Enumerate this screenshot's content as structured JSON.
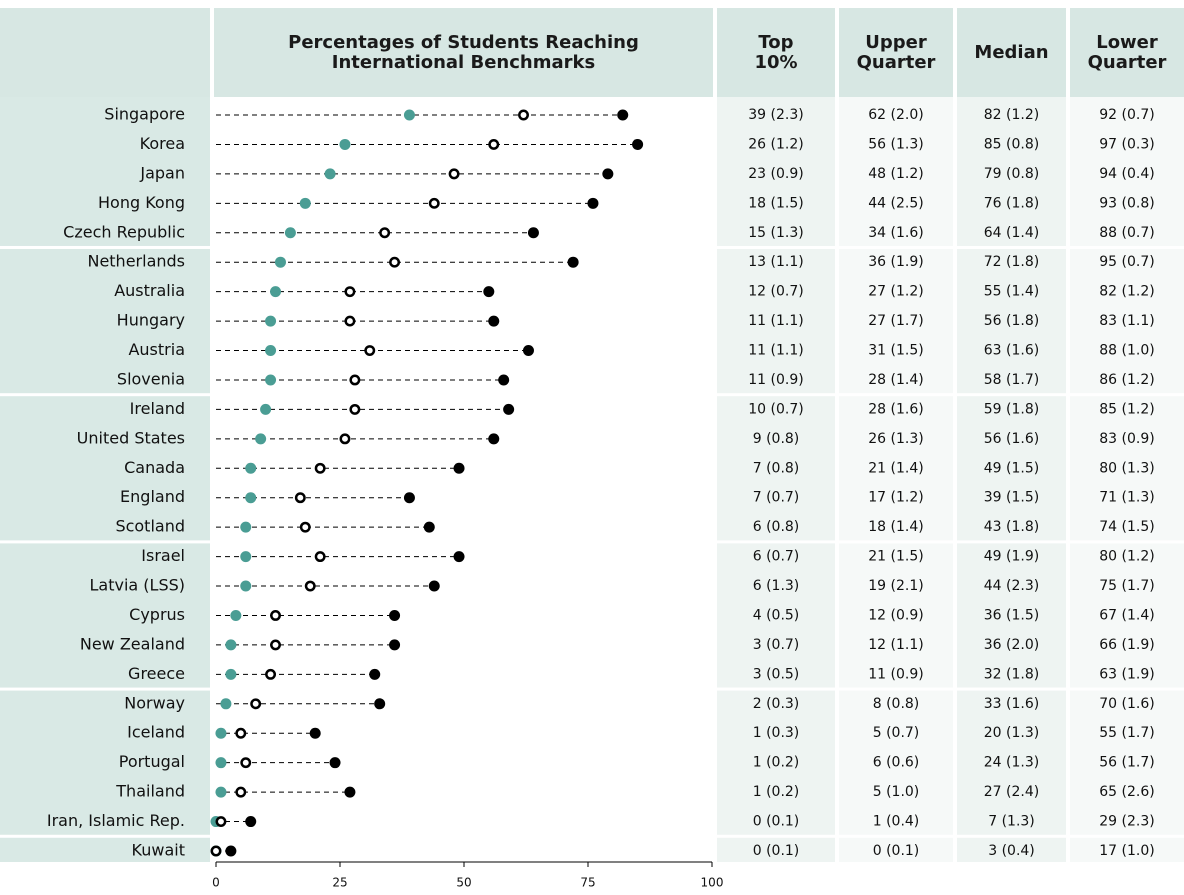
{
  "chart_data": {
    "type": "dot",
    "title": "Percentages of Students Reaching International Benchmarks",
    "categories": [
      "Singapore",
      "Korea",
      "Japan",
      "Hong Kong",
      "Czech Republic",
      "Netherlands",
      "Australia",
      "Hungary",
      "Austria",
      "Slovenia",
      "Ireland",
      "United States",
      "Canada",
      "England",
      "Scotland",
      "Israel",
      "Latvia (LSS)",
      "Cyprus",
      "New Zealand",
      "Greece",
      "Norway",
      "Iceland",
      "Portugal",
      "Thailand",
      "Iran, Islamic Rep.",
      "Kuwait"
    ],
    "xlim": [
      0,
      100
    ],
    "xticks": [
      0,
      25,
      50,
      75,
      100
    ],
    "series": [
      {
        "name": "Top 10%",
        "color": "#4a9d94",
        "marker": "filled",
        "values": [
          39,
          26,
          23,
          18,
          15,
          13,
          12,
          11,
          11,
          11,
          10,
          9,
          7,
          7,
          6,
          6,
          6,
          4,
          3,
          3,
          2,
          1,
          1,
          1,
          0,
          0
        ],
        "value_labels": [
          "39 (2.3)",
          "26 (1.2)",
          "23 (0.9)",
          "18 (1.5)",
          "15 (1.3)",
          "13 (1.1)",
          "12 (0.7)",
          "11 (1.1)",
          "11 (1.1)",
          "11 (0.9)",
          "10 (0.7)",
          "9 (0.8)",
          "7 (0.8)",
          "7 (0.7)",
          "6 (0.8)",
          "6 (0.7)",
          "6 (1.3)",
          "4 (0.5)",
          "3 (0.7)",
          "3 (0.5)",
          "2 (0.3)",
          "1 (0.3)",
          "1 (0.2)",
          "1 (0.2)",
          "0 (0.1)",
          "0 (0.1)"
        ]
      },
      {
        "name": "Upper Quarter",
        "color": "#000000",
        "marker": "open",
        "values": [
          62,
          56,
          48,
          44,
          34,
          36,
          27,
          27,
          31,
          28,
          28,
          26,
          21,
          17,
          18,
          21,
          19,
          12,
          12,
          11,
          8,
          5,
          6,
          5,
          1,
          0
        ],
        "value_labels": [
          "62 (2.0)",
          "56 (1.3)",
          "48 (1.2)",
          "44 (2.5)",
          "34 (1.6)",
          "36 (1.9)",
          "27 (1.2)",
          "27 (1.7)",
          "31 (1.5)",
          "28 (1.4)",
          "28 (1.6)",
          "26 (1.3)",
          "21 (1.4)",
          "17 (1.2)",
          "18 (1.4)",
          "21 (1.5)",
          "19 (2.1)",
          "12 (0.9)",
          "12 (1.1)",
          "11 (0.9)",
          "8 (0.8)",
          "5 (0.7)",
          "6 (0.6)",
          "5 (1.0)",
          "1 (0.4)",
          "0 (0.1)"
        ]
      },
      {
        "name": "Median",
        "color": "#000000",
        "marker": "filled",
        "values": [
          82,
          85,
          79,
          76,
          64,
          72,
          55,
          56,
          63,
          58,
          59,
          56,
          49,
          39,
          43,
          49,
          44,
          36,
          36,
          32,
          33,
          20,
          24,
          27,
          7,
          3
        ],
        "value_labels": [
          "82 (1.2)",
          "85 (0.8)",
          "79 (0.8)",
          "76 (1.8)",
          "64 (1.4)",
          "72 (1.8)",
          "55 (1.4)",
          "56 (1.8)",
          "63 (1.6)",
          "58 (1.7)",
          "59 (1.8)",
          "56 (1.6)",
          "49 (1.5)",
          "39 (1.5)",
          "43 (1.8)",
          "49 (1.9)",
          "44 (2.3)",
          "36 (1.5)",
          "36 (2.0)",
          "32 (1.8)",
          "33 (1.6)",
          "20 (1.3)",
          "24 (1.3)",
          "27 (2.4)",
          "7 (1.3)",
          "3 (0.4)"
        ]
      },
      {
        "name": "Lower Quarter",
        "color": "#000000",
        "marker": "none",
        "values": [
          92,
          97,
          94,
          93,
          88,
          95,
          82,
          83,
          88,
          86,
          85,
          83,
          80,
          71,
          74,
          80,
          75,
          67,
          66,
          63,
          70,
          55,
          56,
          65,
          29,
          17
        ],
        "value_labels": [
          "92 (0.7)",
          "97 (0.3)",
          "94 (0.4)",
          "93 (0.8)",
          "88 (0.7)",
          "95 (0.7)",
          "82 (1.2)",
          "83 (1.1)",
          "88 (1.0)",
          "86 (1.2)",
          "85 (1.2)",
          "83 (0.9)",
          "80 (1.3)",
          "71 (1.3)",
          "74 (1.5)",
          "80 (1.2)",
          "75 (1.7)",
          "67 (1.4)",
          "66 (1.9)",
          "63 (1.9)",
          "70 (1.6)",
          "55 (1.7)",
          "56 (1.7)",
          "65 (2.6)",
          "29 (2.3)",
          "17 (1.0)"
        ]
      }
    ]
  }
}
